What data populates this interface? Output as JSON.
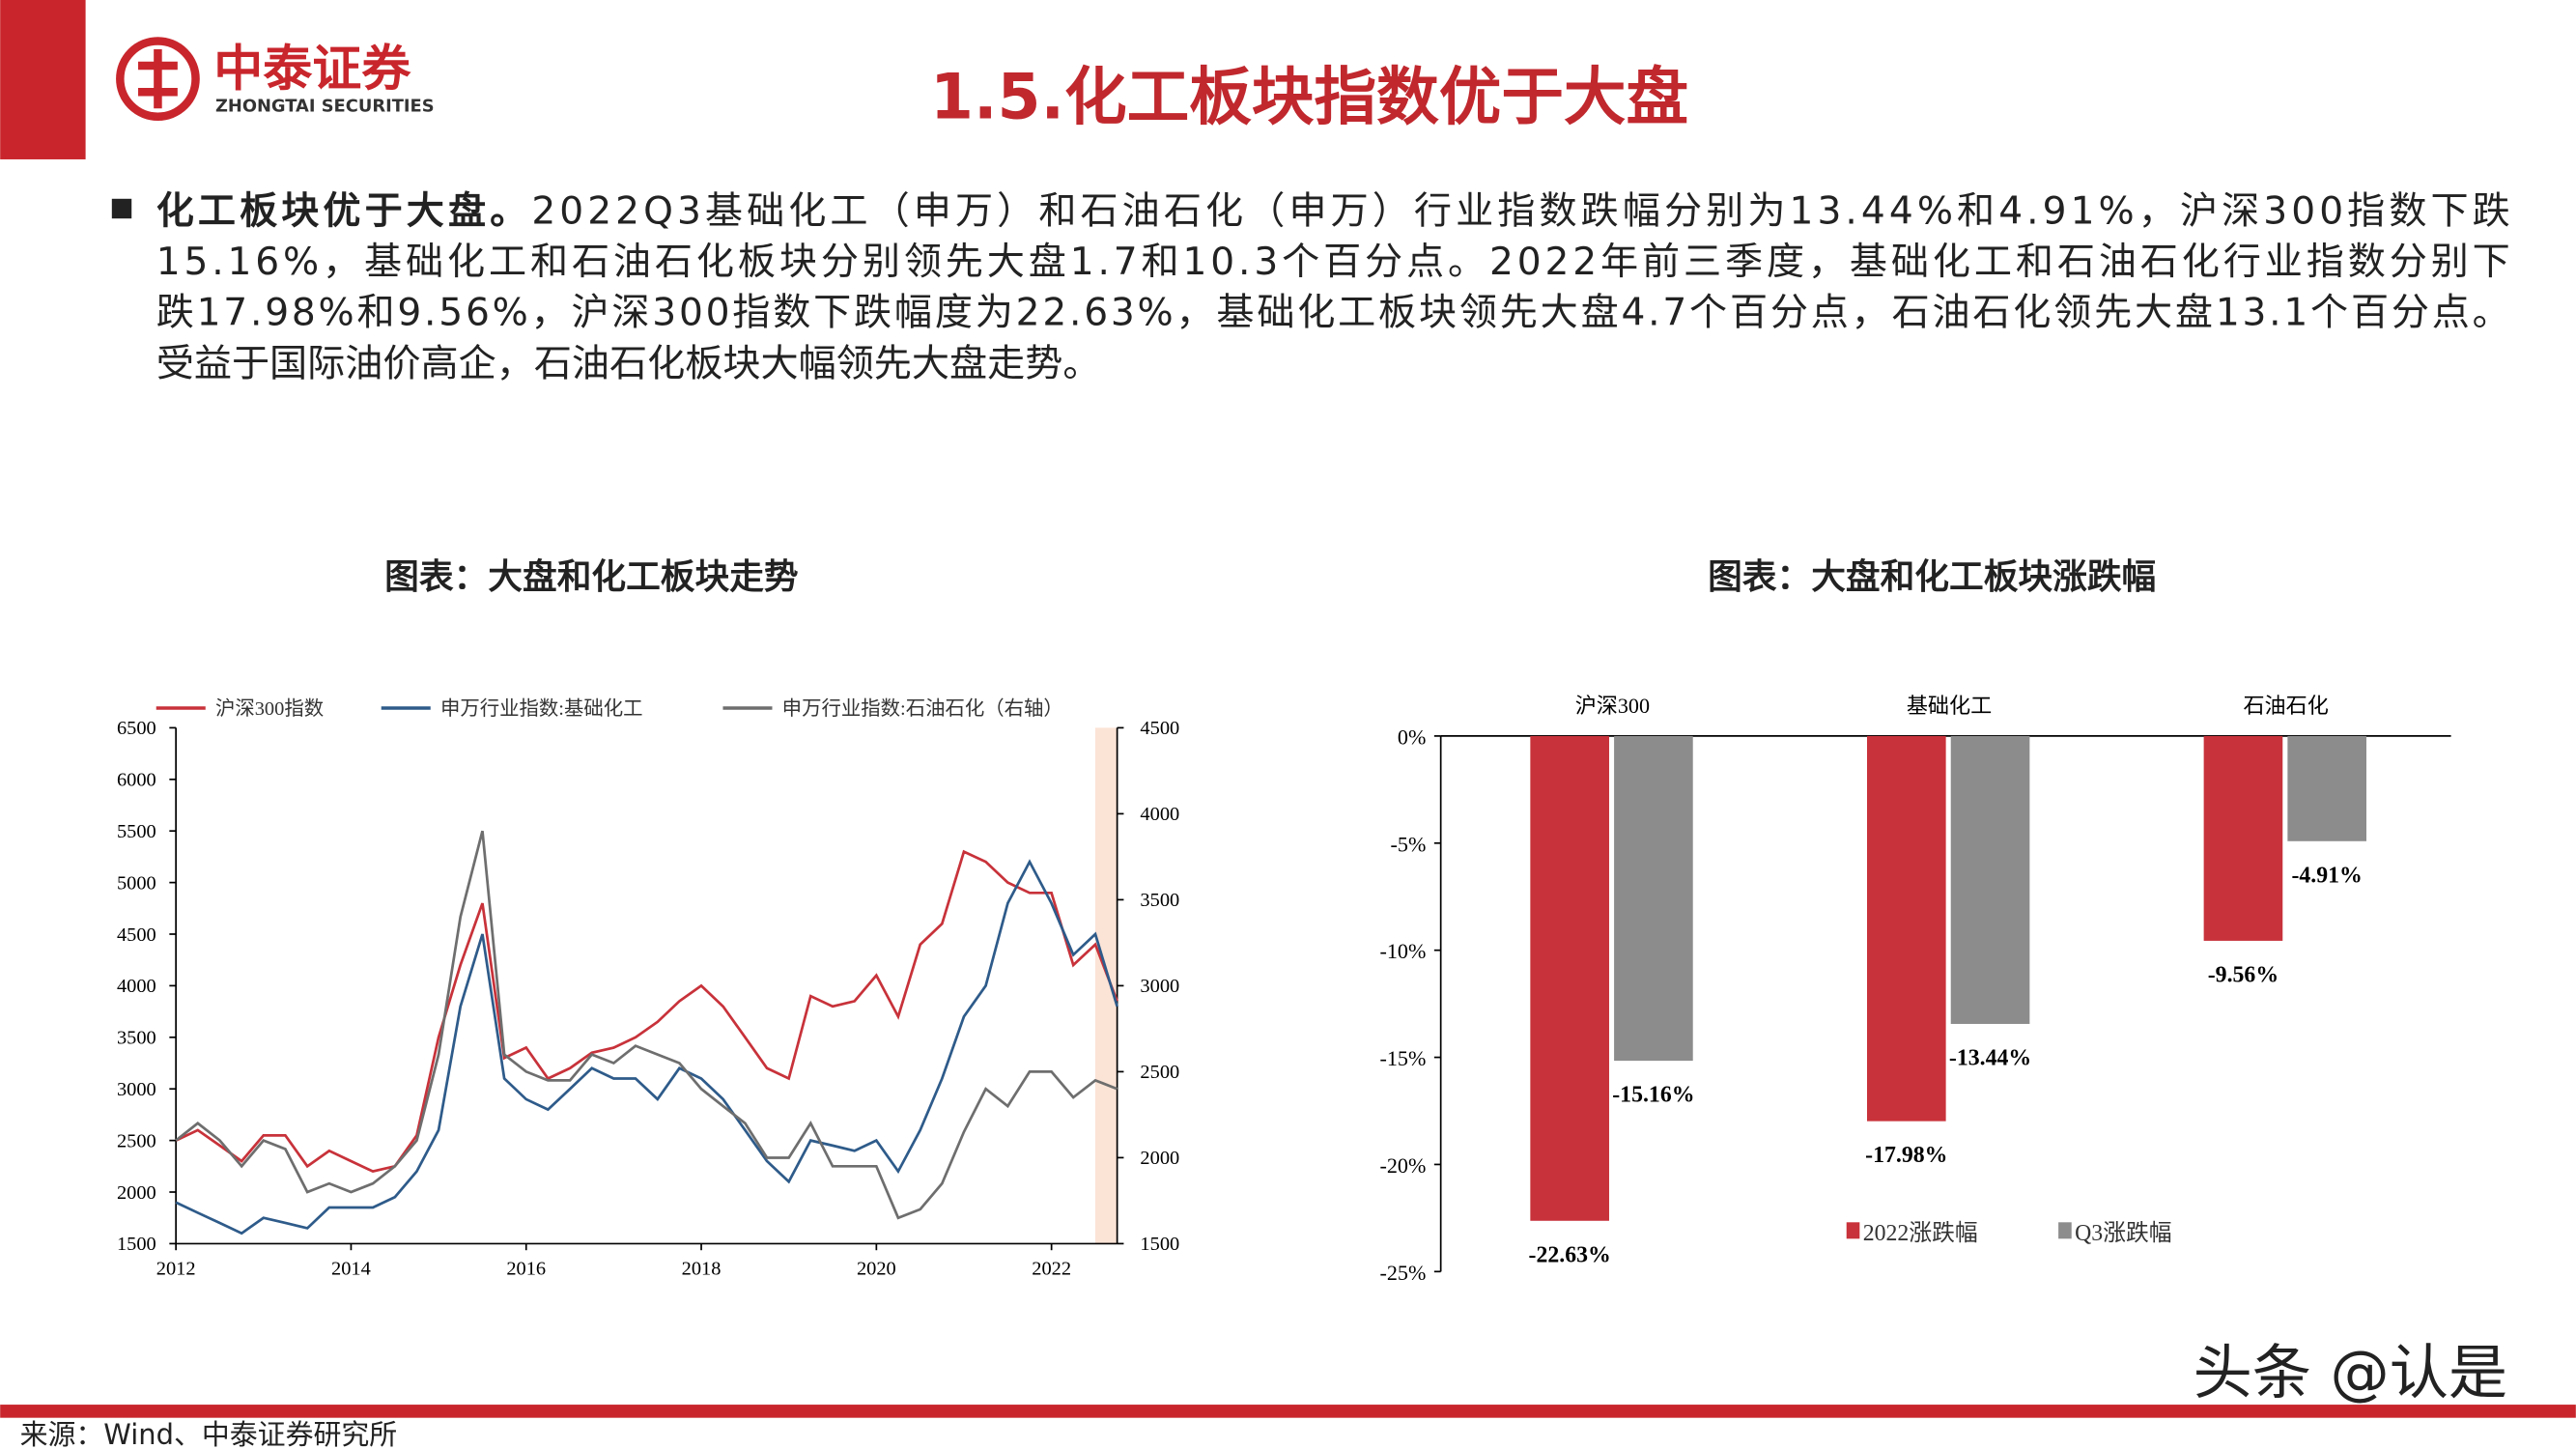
{
  "header": {
    "logo_cn": "中泰证券",
    "logo_en": "ZHONGTAI SECURITIES",
    "title": "1.5.化工板块指数优于大盘"
  },
  "bullet": {
    "lead": "化工板块优于大盘。",
    "lines": [
      "2022Q3基础化工（申万）和石油石化（申万）行业指数跌幅分别为13.44%和4.91%，沪深300指数下跌",
      "15.16%，基础化工和石油石化板块分别领先大盘1.7和10.3个百分点。2022年前三季度，基础化工和石油石化行业指数分别下",
      "跌17.98%和9.56%，沪深300指数下跌幅度为22.63%，基础化工板块领先大盘4.7个百分点，石油石化领先大盘13.1个百分点。",
      "受益于国际油价高企，石油石化板块大幅领先大盘走势。"
    ]
  },
  "chart_data": [
    {
      "type": "line",
      "title": "图表：大盘和化工板块走势",
      "x": [
        2012,
        2012.25,
        2012.5,
        2012.75,
        2013,
        2013.25,
        2013.5,
        2013.75,
        2014,
        2014.25,
        2014.5,
        2014.75,
        2015,
        2015.25,
        2015.5,
        2015.75,
        2016,
        2016.25,
        2016.5,
        2016.75,
        2017,
        2017.25,
        2017.5,
        2017.75,
        2018,
        2018.25,
        2018.5,
        2018.75,
        2019,
        2019.25,
        2019.5,
        2019.75,
        2020,
        2020.25,
        2020.5,
        2020.75,
        2021,
        2021.25,
        2021.5,
        2021.75,
        2022,
        2022.25,
        2022.5,
        2022.75
      ],
      "xlim": [
        2012,
        2022.75
      ],
      "xticks": [
        2012,
        2014,
        2016,
        2018,
        2020,
        2022
      ],
      "ylim": [
        1500,
        6500
      ],
      "yticks": [
        1500,
        2000,
        2500,
        3000,
        3500,
        4000,
        4500,
        5000,
        5500,
        6000,
        6500
      ],
      "y2lim": [
        1500,
        4500
      ],
      "y2ticks": [
        1500,
        2000,
        2500,
        3000,
        3500,
        4000,
        4500
      ],
      "shaded_range": [
        2022.5,
        2022.75
      ],
      "shaded_color": "#fbe3d6",
      "series": [
        {
          "name": "沪深300指数",
          "color": "#c8323a",
          "values": [
            2500,
            2600,
            2450,
            2300,
            2550,
            2550,
            2250,
            2400,
            2300,
            2200,
            2250,
            2550,
            3500,
            4200,
            4800,
            3300,
            3400,
            3100,
            3200,
            3350,
            3400,
            3500,
            3650,
            3850,
            4000,
            3800,
            3500,
            3200,
            3100,
            3900,
            3800,
            3850,
            4100,
            3700,
            4400,
            4600,
            5300,
            5200,
            5000,
            4900,
            4900,
            4200,
            4400,
            3850
          ]
        },
        {
          "name": "申万行业指数:基础化工",
          "color": "#2e5b8a",
          "values": [
            1900,
            1800,
            1700,
            1600,
            1750,
            1700,
            1650,
            1850,
            1850,
            1850,
            1950,
            2200,
            2600,
            3800,
            4500,
            3100,
            2900,
            2800,
            3000,
            3200,
            3100,
            3100,
            2900,
            3200,
            3100,
            2900,
            2600,
            2300,
            2100,
            2500,
            2450,
            2400,
            2500,
            2200,
            2600,
            3100,
            3700,
            4000,
            4800,
            5200,
            4800,
            4300,
            4500,
            3800
          ]
        },
        {
          "name": "申万行业指数:石油石化（右轴）",
          "color": "#6e6e6e",
          "axis": "y2",
          "values": [
            2100,
            2200,
            2100,
            1950,
            2100,
            2050,
            1800,
            1850,
            1800,
            1850,
            1950,
            2100,
            2600,
            3400,
            3900,
            2600,
            2500,
            2450,
            2450,
            2600,
            2550,
            2650,
            2600,
            2550,
            2400,
            2300,
            2200,
            2000,
            2000,
            2200,
            1950,
            1950,
            1950,
            1650,
            1700,
            1850,
            2150,
            2400,
            2300,
            2500,
            2500,
            2350,
            2450,
            2400
          ]
        }
      ]
    },
    {
      "type": "bar",
      "title": "图表：大盘和化工板块涨跌幅",
      "categories": [
        "沪深300",
        "基础化工",
        "石油石化"
      ],
      "ylim": [
        -25,
        0
      ],
      "yticks": [
        {
          "value": 0,
          "label": "0%"
        },
        {
          "value": -5,
          "label": "-5%"
        },
        {
          "value": -10,
          "label": "-10%"
        },
        {
          "value": -15,
          "label": "-15%"
        },
        {
          "value": -20,
          "label": "-20%"
        },
        {
          "value": -25,
          "label": "-25%"
        }
      ],
      "series": [
        {
          "name": "2022涨跌幅",
          "color": "#c8323a",
          "values": [
            -22.63,
            -17.98,
            -9.56
          ],
          "value_labels": [
            "-22.63%",
            "-17.98%",
            "-9.56%"
          ]
        },
        {
          "name": "Q3涨跌幅",
          "color": "#8c8c8c",
          "values": [
            -15.16,
            -13.44,
            -4.91
          ],
          "value_labels": [
            "-15.16%",
            "-13.44%",
            "-4.91%"
          ]
        }
      ]
    }
  ],
  "footer": {
    "source": "来源：Wind、中泰证券研究所",
    "watermark": "头条 @认是"
  }
}
